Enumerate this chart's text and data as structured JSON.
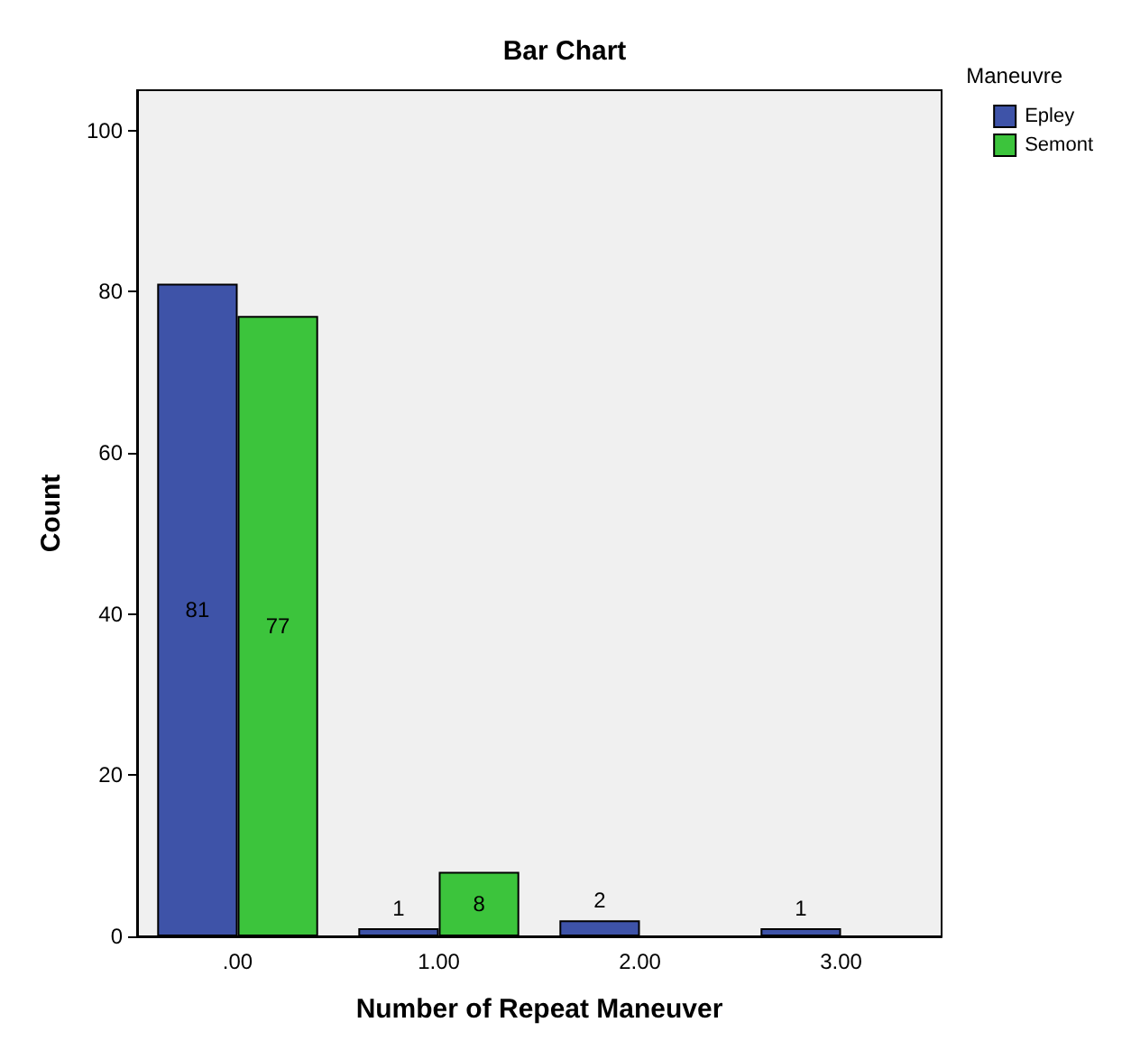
{
  "chart_data": {
    "type": "bar",
    "title": "Bar Chart",
    "xlabel": "Number of Repeat Maneuver",
    "ylabel": "Count",
    "legend_title": "Maneuvre",
    "categories": [
      ".00",
      "1.00",
      "2.00",
      "3.00"
    ],
    "series": [
      {
        "name": "Epley",
        "color": "#3e53a8",
        "values": [
          81,
          1,
          2,
          1
        ]
      },
      {
        "name": "Semont",
        "color": "#3cc43c",
        "values": [
          77,
          8,
          null,
          null
        ]
      }
    ],
    "ylim": [
      0,
      105
    ],
    "yticks": [
      0,
      20,
      40,
      60,
      80,
      100
    ],
    "data_labels": true,
    "grid": false,
    "legend": "top right"
  }
}
